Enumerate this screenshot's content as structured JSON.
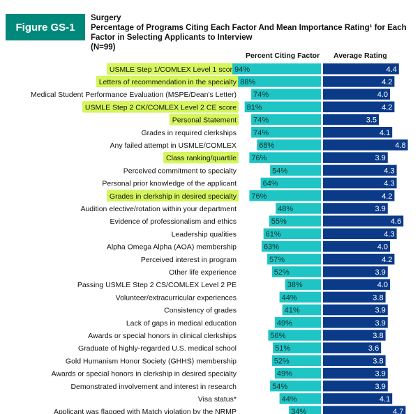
{
  "figure": {
    "label": "Figure GS-1",
    "color": "#00897B"
  },
  "header": {
    "specialty": "Surgery",
    "title": "Percentage of Programs Citing Each Factor And Mean Importance Rating¹ for Each Factor in Selecting Applicants to Interview",
    "n": "(N=99)"
  },
  "columns": {
    "percent": "Percent Citing Factor",
    "rating": "Average Rating"
  },
  "colors": {
    "percent_bar": "#1FC4C4",
    "rating_bar": "#0B3A88",
    "highlight": "#D5F55C"
  },
  "chart_data": {
    "type": "bar",
    "categories": [
      "USMLE Step 1/COMLEX Level 1 score",
      "Letters of recommendation in the specialty",
      "Medical Student Performance Evaluation (MSPE/Dean's Letter)",
      "USMLE Step 2 CK/COMLEX Level 2 CE score",
      "Personal Statement",
      "Grades in required clerkships",
      "Any failed attempt in USMLE/COMLEX",
      "Class ranking/quartile",
      "Perceived commitment to specialty",
      "Personal prior knowledge of the applicant",
      "Grades in clerkship in desired specialty",
      "Audition elective/rotation within your department",
      "Evidence of professionalism and ethics",
      "Leadership qualities",
      "Alpha Omega Alpha (AOA) membership",
      "Perceived interest in program",
      "Other life experience",
      "Passing USMLE Step 2 CS/COMLEX Level 2 PE",
      "Volunteer/extracurricular experiences",
      "Consistency of grades",
      "Lack of gaps in medical education",
      "Awards or special honors in clinical clerkships",
      "Graduate of highly-regarded U.S. medical school",
      "Gold Humanism Honor Society (GHHS) membership",
      "Awards or special honors in clerkship in desired specialty",
      "Demonstrated involvement and interest in research",
      "Visa status*",
      "Applicant was flagged with Match violation by the NRMP"
    ],
    "highlighted": [
      "USMLE Step 1/COMLEX Level 1 score",
      "Letters of recommendation in the specialty",
      "USMLE Step 2 CK/COMLEX Level 2 CE score",
      "Personal Statement",
      "Class ranking/quartile",
      "Grades in clerkship in desired specialty"
    ],
    "series": [
      {
        "name": "Percent Citing Factor",
        "values": [
          94,
          88,
          74,
          81,
          74,
          74,
          68,
          76,
          54,
          64,
          76,
          48,
          55,
          61,
          63,
          57,
          52,
          38,
          44,
          41,
          49,
          56,
          51,
          52,
          49,
          54,
          44,
          34
        ],
        "labels": [
          "94%",
          "88%",
          "74%",
          "81%",
          "74%",
          "74%",
          "68%",
          "76%",
          "54%",
          "64%",
          "76%",
          "48%",
          "55%",
          "61%",
          "63%",
          "57%",
          "52%",
          "38%",
          "44%",
          "41%",
          "49%",
          "56%",
          "51%",
          "52%",
          "49%",
          "54%",
          "44%",
          "34%"
        ]
      },
      {
        "name": "Average Rating",
        "values": [
          4.4,
          4.2,
          4.0,
          4.2,
          3.5,
          4.1,
          4.8,
          3.9,
          4.3,
          4.3,
          4.2,
          3.9,
          4.6,
          4.3,
          4.0,
          4.2,
          3.9,
          4.0,
          3.8,
          3.9,
          3.9,
          3.8,
          3.6,
          3.8,
          3.9,
          3.9,
          4.1,
          4.7
        ],
        "labels": [
          "4.4",
          "4.2",
          "4.0",
          "4.2",
          "3.5",
          "4.1",
          "4.8",
          "3.9",
          "4.3",
          "4.3",
          "4.2",
          "3.9",
          "4.6",
          "4.3",
          "4.0",
          "4.2",
          "3.9",
          "4.0",
          "3.8",
          "3.9",
          "3.9",
          "3.8",
          "3.6",
          "3.8",
          "3.9",
          "3.9",
          "4.1",
          "4.7"
        ]
      }
    ],
    "percent_range": [
      0,
      100
    ],
    "rating_range": [
      1,
      5
    ]
  }
}
